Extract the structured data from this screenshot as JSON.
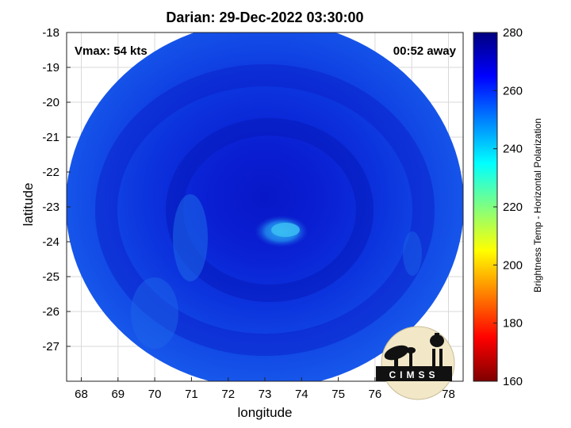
{
  "title": "Darian: 29-Dec-2022 03:30:00",
  "vmax_label": "Vmax: 54 kts",
  "time_away": "00:52 away",
  "logo_text": "CIMSS",
  "chart_data": {
    "type": "heatmap",
    "title": "Darian: 29-Dec-2022 03:30:00",
    "xlabel": "longitude",
    "ylabel": "latitude",
    "xlim": [
      67.6,
      78.4
    ],
    "ylim": [
      -28,
      -18
    ],
    "x_reversed": false,
    "y_reversed": true,
    "xticks": [
      68,
      69,
      70,
      71,
      72,
      73,
      74,
      75,
      76,
      77,
      78
    ],
    "yticks": [
      -18,
      -19,
      -20,
      -21,
      -22,
      -23,
      -24,
      -25,
      -26,
      -27
    ],
    "grid": true,
    "colorbar": {
      "label": "Brightness Temp - Horizontal Polarization",
      "range": [
        160,
        280
      ],
      "ticks": [
        160,
        180,
        200,
        220,
        240,
        260,
        280
      ],
      "colors": [
        "#7f0000",
        "#ff0000",
        "#ff8000",
        "#ffff00",
        "#80ff80",
        "#00ffff",
        "#0080ff",
        "#0000ff",
        "#00007f"
      ]
    },
    "storm_center": {
      "lon": 73.4,
      "lat": -23.6
    },
    "swath_center": {
      "lon": 73.0,
      "lat": -23.2
    }
  }
}
